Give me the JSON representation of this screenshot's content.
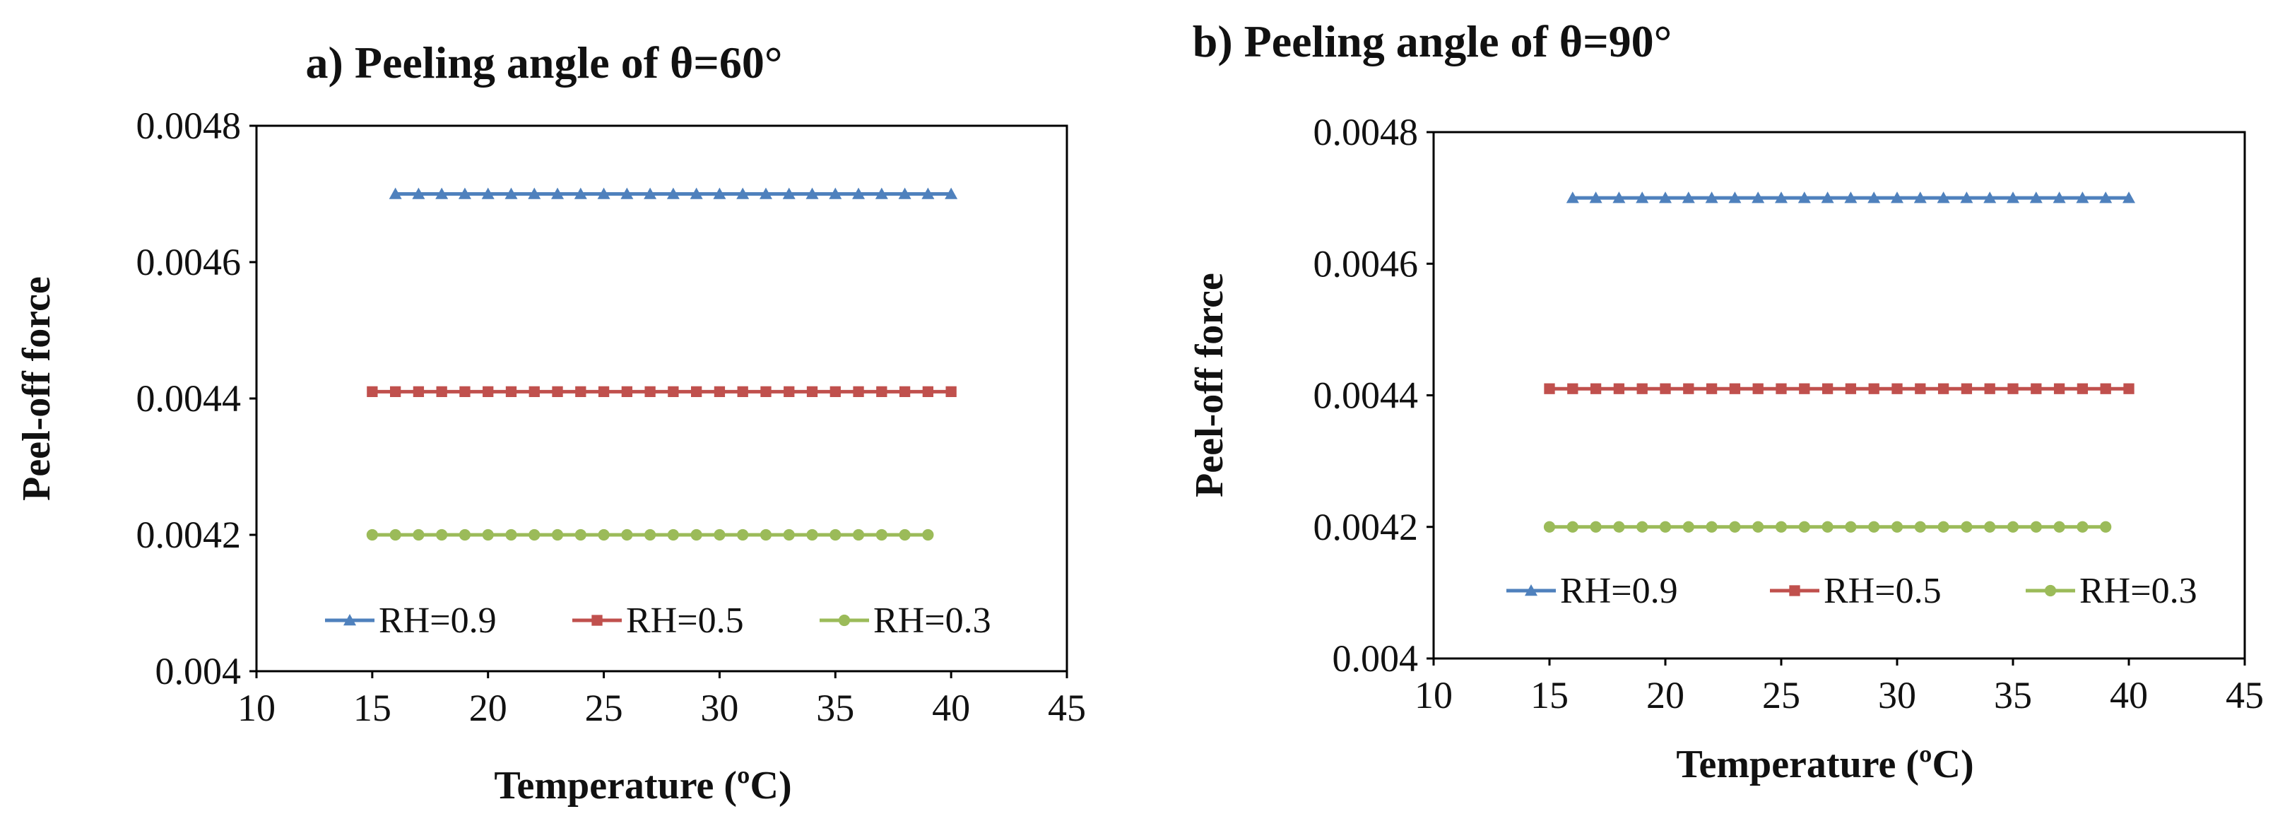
{
  "chart_data": [
    {
      "type": "line",
      "title": "a) Peeling angle of θ=60°",
      "xlabel": "Temperature (ºC)",
      "ylabel": "Peel-off force",
      "xlim": [
        10,
        45
      ],
      "ylim": [
        0.004,
        0.0048
      ],
      "xticks": [
        10,
        15,
        20,
        25,
        30,
        35,
        40,
        45
      ],
      "yticks": [
        0.004,
        0.0042,
        0.0044,
        0.0046,
        0.0048
      ],
      "ytick_labels": [
        "0.004",
        "0.0042",
        "0.0044",
        "0.0046",
        "0.0048"
      ],
      "grid": false,
      "legend_position": "bottom-inside",
      "series": [
        {
          "name": "RH=0.9",
          "color": "#4F81BD",
          "marker": "triangle",
          "x": [
            16,
            17,
            18,
            19,
            20,
            21,
            22,
            23,
            24,
            25,
            26,
            27,
            28,
            29,
            30,
            31,
            32,
            33,
            34,
            35,
            36,
            37,
            38,
            39,
            40
          ],
          "y": [
            0.0047,
            0.0047,
            0.0047,
            0.0047,
            0.0047,
            0.0047,
            0.0047,
            0.0047,
            0.0047,
            0.0047,
            0.0047,
            0.0047,
            0.0047,
            0.0047,
            0.0047,
            0.0047,
            0.0047,
            0.0047,
            0.0047,
            0.0047,
            0.0047,
            0.0047,
            0.0047,
            0.0047,
            0.0047
          ]
        },
        {
          "name": "RH=0.5",
          "color": "#C0504D",
          "marker": "square",
          "x": [
            15,
            16,
            17,
            18,
            19,
            20,
            21,
            22,
            23,
            24,
            25,
            26,
            27,
            28,
            29,
            30,
            31,
            32,
            33,
            34,
            35,
            36,
            37,
            38,
            39,
            40
          ],
          "y": [
            0.00441,
            0.00441,
            0.00441,
            0.00441,
            0.00441,
            0.00441,
            0.00441,
            0.00441,
            0.00441,
            0.00441,
            0.00441,
            0.00441,
            0.00441,
            0.00441,
            0.00441,
            0.00441,
            0.00441,
            0.00441,
            0.00441,
            0.00441,
            0.00441,
            0.00441,
            0.00441,
            0.00441,
            0.00441,
            0.00441
          ]
        },
        {
          "name": "RH=0.3",
          "color": "#9BBB59",
          "marker": "circle",
          "x": [
            15,
            16,
            17,
            18,
            19,
            20,
            21,
            22,
            23,
            24,
            25,
            26,
            27,
            28,
            29,
            30,
            31,
            32,
            33,
            34,
            35,
            36,
            37,
            38,
            39
          ],
          "y": [
            0.0042,
            0.0042,
            0.0042,
            0.0042,
            0.0042,
            0.0042,
            0.0042,
            0.0042,
            0.0042,
            0.0042,
            0.0042,
            0.0042,
            0.0042,
            0.0042,
            0.0042,
            0.0042,
            0.0042,
            0.0042,
            0.0042,
            0.0042,
            0.0042,
            0.0042,
            0.0042,
            0.0042,
            0.0042
          ]
        }
      ]
    },
    {
      "type": "line",
      "title": "b) Peeling angle of θ=90°",
      "xlabel": "Temperature (ºC)",
      "ylabel": "Peel-off force",
      "xlim": [
        10,
        45
      ],
      "ylim": [
        0.004,
        0.0048
      ],
      "xticks": [
        10,
        15,
        20,
        25,
        30,
        35,
        40,
        45
      ],
      "yticks": [
        0.004,
        0.0042,
        0.0044,
        0.0046,
        0.0048
      ],
      "ytick_labels": [
        "0.004",
        "0.0042",
        "0.0044",
        "0.0046",
        "0.0048"
      ],
      "grid": false,
      "legend_position": "bottom-inside",
      "series": [
        {
          "name": "RH=0.9",
          "color": "#4F81BD",
          "marker": "triangle",
          "x": [
            16,
            17,
            18,
            19,
            20,
            21,
            22,
            23,
            24,
            25,
            26,
            27,
            28,
            29,
            30,
            31,
            32,
            33,
            34,
            35,
            36,
            37,
            38,
            39,
            40
          ],
          "y": [
            0.0047,
            0.0047,
            0.0047,
            0.0047,
            0.0047,
            0.0047,
            0.0047,
            0.0047,
            0.0047,
            0.0047,
            0.0047,
            0.0047,
            0.0047,
            0.0047,
            0.0047,
            0.0047,
            0.0047,
            0.0047,
            0.0047,
            0.0047,
            0.0047,
            0.0047,
            0.0047,
            0.0047,
            0.0047
          ]
        },
        {
          "name": "RH=0.5",
          "color": "#C0504D",
          "marker": "square",
          "x": [
            15,
            16,
            17,
            18,
            19,
            20,
            21,
            22,
            23,
            24,
            25,
            26,
            27,
            28,
            29,
            30,
            31,
            32,
            33,
            34,
            35,
            36,
            37,
            38,
            39,
            40
          ],
          "y": [
            0.00441,
            0.00441,
            0.00441,
            0.00441,
            0.00441,
            0.00441,
            0.00441,
            0.00441,
            0.00441,
            0.00441,
            0.00441,
            0.00441,
            0.00441,
            0.00441,
            0.00441,
            0.00441,
            0.00441,
            0.00441,
            0.00441,
            0.00441,
            0.00441,
            0.00441,
            0.00441,
            0.00441,
            0.00441,
            0.00441
          ]
        },
        {
          "name": "RH=0.3",
          "color": "#9BBB59",
          "marker": "circle",
          "x": [
            15,
            16,
            17,
            18,
            19,
            20,
            21,
            22,
            23,
            24,
            25,
            26,
            27,
            28,
            29,
            30,
            31,
            32,
            33,
            34,
            35,
            36,
            37,
            38,
            39
          ],
          "y": [
            0.0042,
            0.0042,
            0.0042,
            0.0042,
            0.0042,
            0.0042,
            0.0042,
            0.0042,
            0.0042,
            0.0042,
            0.0042,
            0.0042,
            0.0042,
            0.0042,
            0.0042,
            0.0042,
            0.0042,
            0.0042,
            0.0042,
            0.0042,
            0.0042,
            0.0042,
            0.0042,
            0.0042,
            0.0042
          ]
        }
      ]
    }
  ]
}
